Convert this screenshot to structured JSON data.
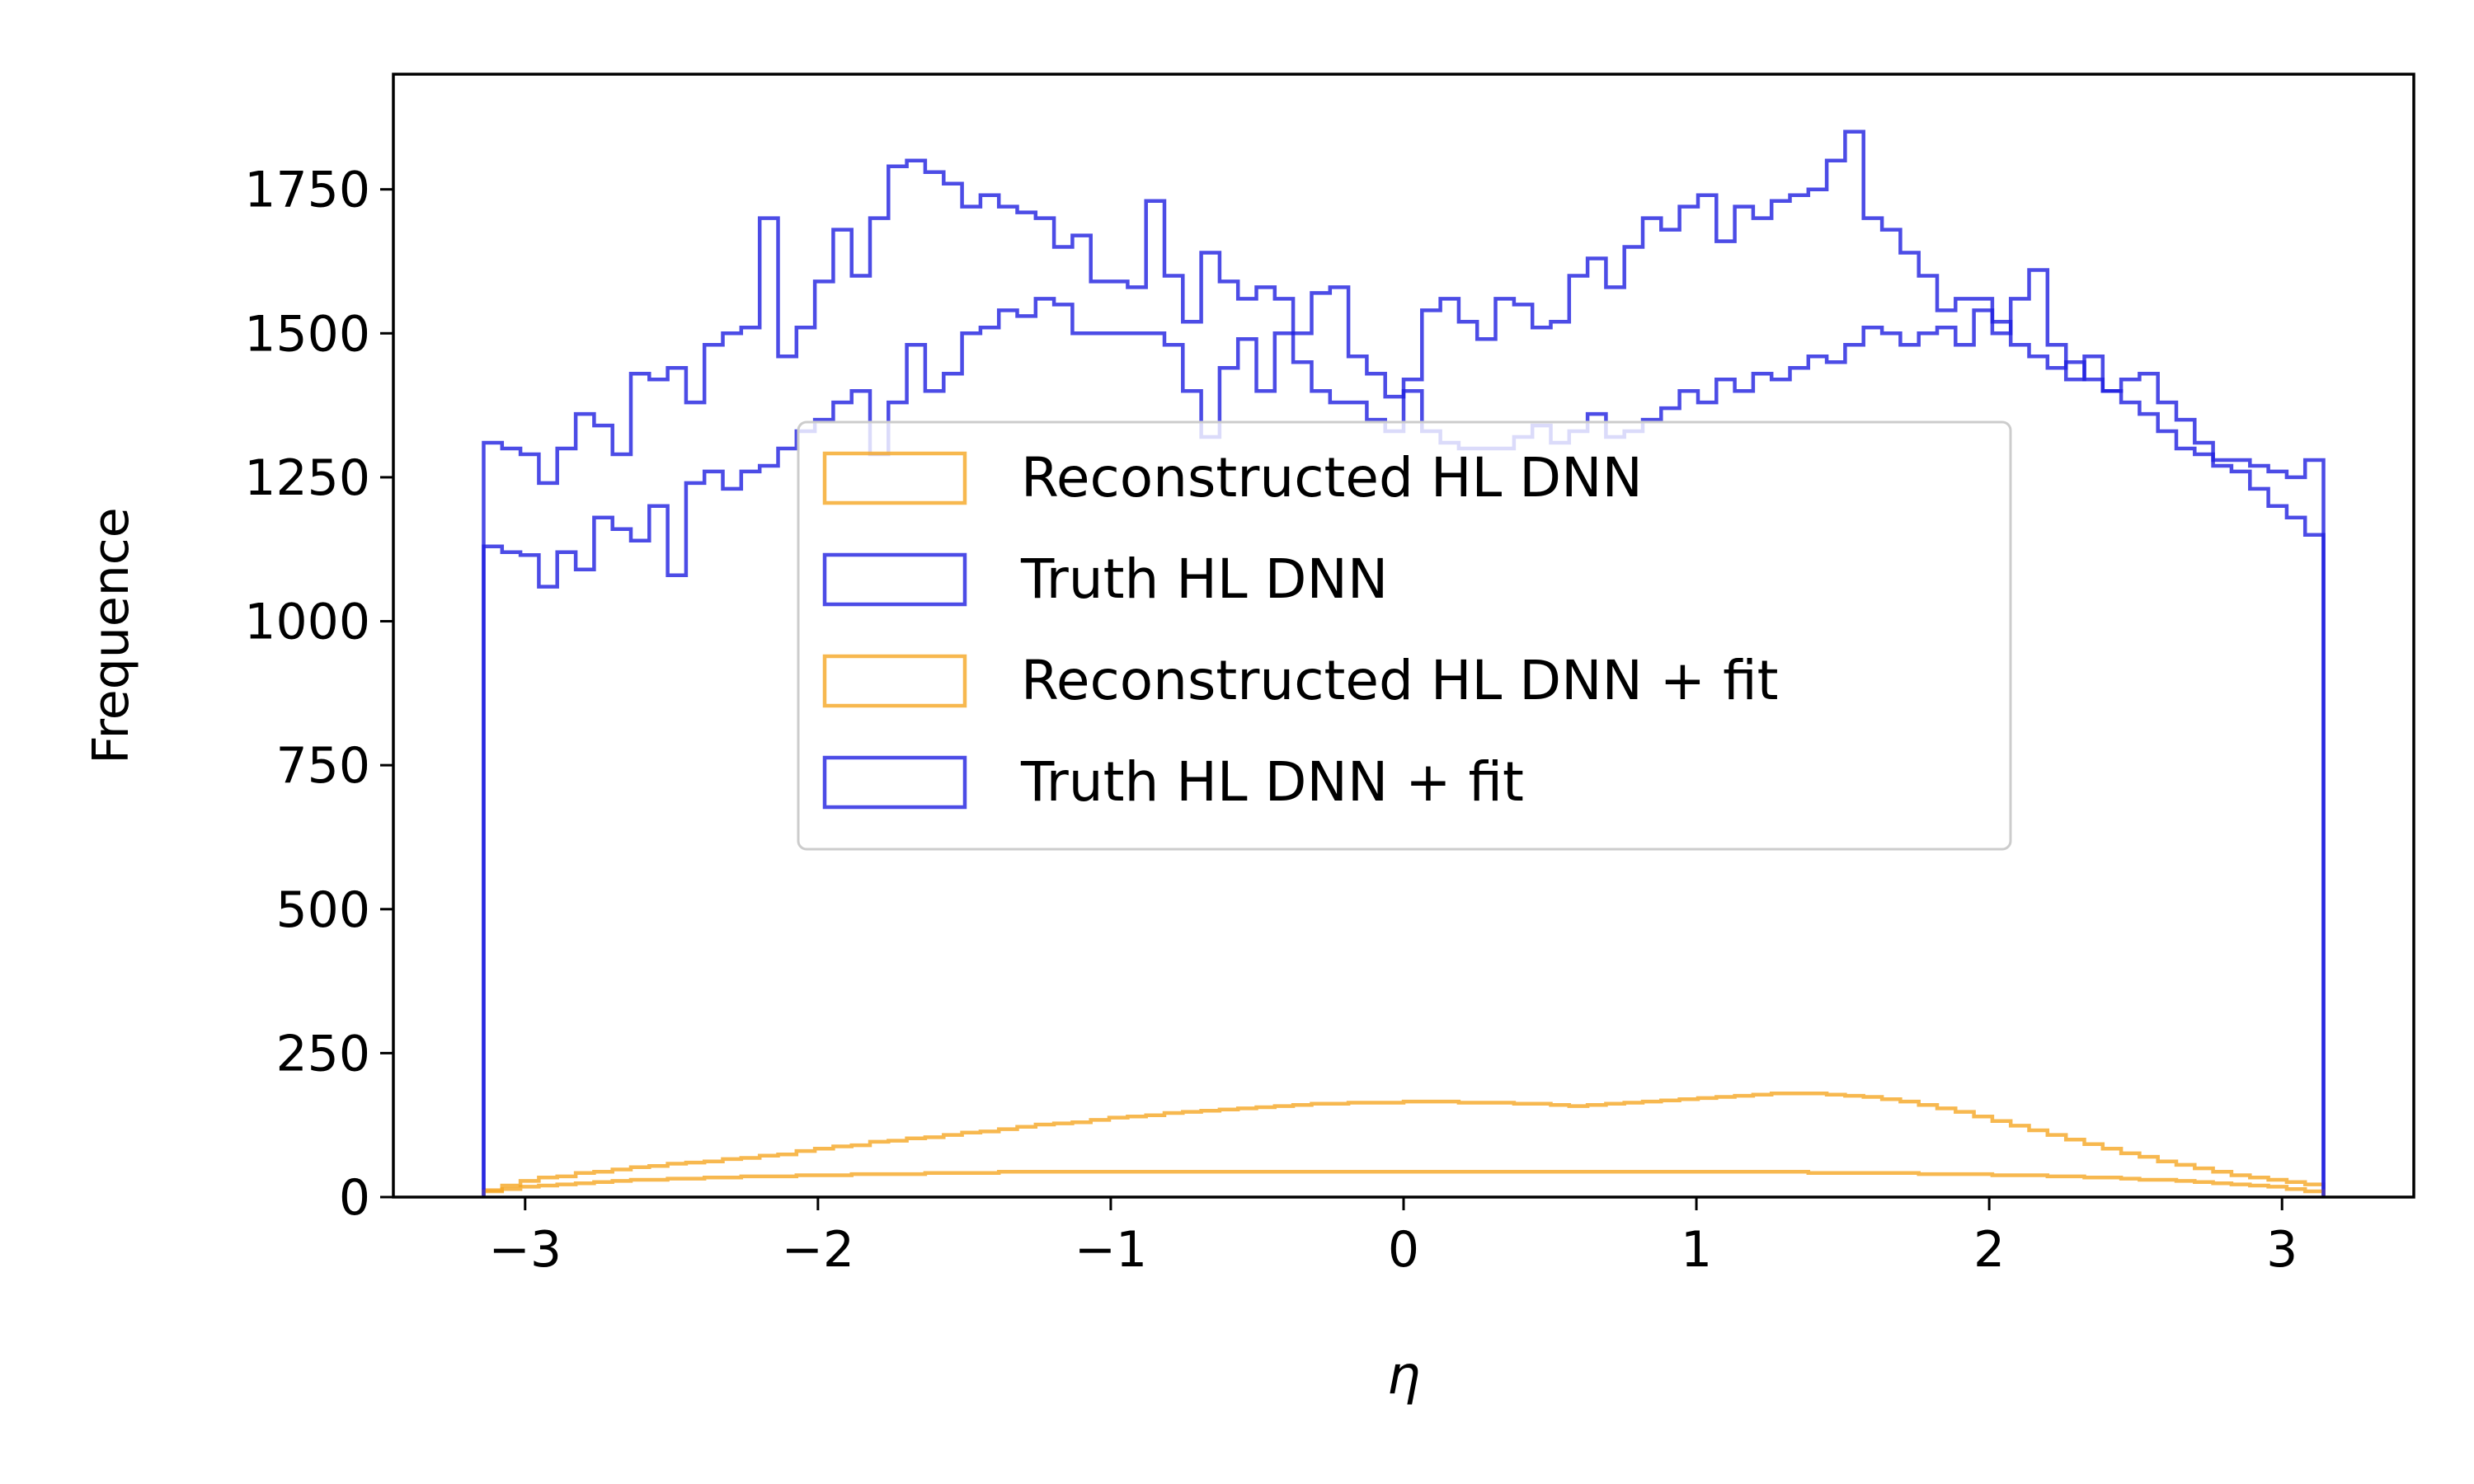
{
  "chart_data": {
    "type": "histogram-step",
    "xlabel": "η",
    "ylabel": "Frequence",
    "xlim": [
      -3.45,
      3.45
    ],
    "ylim": [
      0,
      1950
    ],
    "xticks": [
      {
        "value": -3,
        "label": "−3"
      },
      {
        "value": -2,
        "label": "−2"
      },
      {
        "value": -1,
        "label": "−1"
      },
      {
        "value": 0,
        "label": "0"
      },
      {
        "value": 1,
        "label": "1"
      },
      {
        "value": 2,
        "label": "2"
      },
      {
        "value": 3,
        "label": "3"
      }
    ],
    "yticks": [
      {
        "value": 0,
        "label": "0"
      },
      {
        "value": 250,
        "label": "250"
      },
      {
        "value": 500,
        "label": "500"
      },
      {
        "value": 750,
        "label": "750"
      },
      {
        "value": 1000,
        "label": "1000"
      },
      {
        "value": 1250,
        "label": "1250"
      },
      {
        "value": 1500,
        "label": "1500"
      },
      {
        "value": 1750,
        "label": "1750"
      }
    ],
    "bin_range": [
      -3.14159,
      3.14159
    ],
    "n_bins": 100,
    "series": [
      {
        "name": "Reconstructed HL DNN",
        "color": "#f5a623",
        "values": [
          12,
          20,
          28,
          34,
          36,
          42,
          44,
          48,
          52,
          54,
          58,
          60,
          62,
          66,
          68,
          72,
          74,
          80,
          84,
          88,
          90,
          96,
          98,
          102,
          104,
          108,
          112,
          114,
          118,
          122,
          126,
          128,
          130,
          134,
          138,
          140,
          142,
          146,
          148,
          150,
          152,
          154,
          156,
          158,
          160,
          162,
          162,
          164,
          164,
          164,
          166,
          166,
          166,
          164,
          164,
          164,
          162,
          162,
          160,
          158,
          160,
          162,
          164,
          166,
          168,
          170,
          172,
          174,
          176,
          178,
          180,
          180,
          180,
          178,
          176,
          174,
          170,
          166,
          160,
          154,
          148,
          140,
          132,
          124,
          116,
          108,
          100,
          92,
          84,
          76,
          70,
          62,
          56,
          50,
          44,
          38,
          34,
          30,
          26,
          22
        ]
      },
      {
        "name": "Truth HL DNN",
        "color": "#1f1fe0",
        "values": [
          1130,
          1120,
          1115,
          1060,
          1120,
          1090,
          1180,
          1160,
          1140,
          1200,
          1080,
          1240,
          1260,
          1230,
          1260,
          1270,
          1300,
          1330,
          1350,
          1380,
          1400,
          1290,
          1380,
          1480,
          1400,
          1430,
          1500,
          1510,
          1540,
          1530,
          1560,
          1550,
          1500,
          1500,
          1500,
          1500,
          1500,
          1480,
          1400,
          1320,
          1440,
          1490,
          1400,
          1500,
          1450,
          1400,
          1380,
          1380,
          1350,
          1330,
          1400,
          1330,
          1310,
          1300,
          1300,
          1300,
          1320,
          1340,
          1310,
          1330,
          1360,
          1320,
          1330,
          1350,
          1370,
          1400,
          1380,
          1420,
          1400,
          1430,
          1420,
          1440,
          1460,
          1450,
          1480,
          1510,
          1500,
          1480,
          1500,
          1510,
          1480,
          1540,
          1500,
          1560,
          1610,
          1480,
          1420,
          1460,
          1400,
          1420,
          1430,
          1380,
          1350,
          1310,
          1270,
          1260,
          1230,
          1200,
          1180,
          1150
        ]
      },
      {
        "name": "Reconstructed HL DNN + fit",
        "color": "#f5a623",
        "values": [
          10,
          14,
          18,
          20,
          22,
          24,
          26,
          28,
          30,
          30,
          32,
          32,
          34,
          34,
          36,
          36,
          36,
          38,
          38,
          38,
          40,
          40,
          40,
          40,
          42,
          42,
          42,
          42,
          44,
          44,
          44,
          44,
          44,
          44,
          44,
          44,
          44,
          44,
          44,
          44,
          44,
          44,
          44,
          44,
          44,
          44,
          44,
          44,
          44,
          44,
          44,
          44,
          44,
          44,
          44,
          44,
          44,
          44,
          44,
          44,
          44,
          44,
          44,
          44,
          44,
          44,
          44,
          44,
          44,
          44,
          44,
          44,
          42,
          42,
          42,
          42,
          42,
          42,
          40,
          40,
          40,
          40,
          38,
          38,
          38,
          36,
          36,
          34,
          34,
          32,
          30,
          30,
          28,
          26,
          24,
          22,
          20,
          18,
          14,
          10
        ]
      },
      {
        "name": "Truth HL DNN + fit",
        "color": "#1f1fe0",
        "values": [
          1310,
          1300,
          1290,
          1240,
          1300,
          1360,
          1340,
          1290,
          1430,
          1420,
          1440,
          1380,
          1480,
          1500,
          1510,
          1700,
          1460,
          1510,
          1590,
          1680,
          1600,
          1700,
          1790,
          1800,
          1780,
          1760,
          1720,
          1740,
          1720,
          1710,
          1700,
          1650,
          1670,
          1590,
          1590,
          1580,
          1730,
          1600,
          1520,
          1640,
          1590,
          1560,
          1580,
          1560,
          1500,
          1570,
          1580,
          1460,
          1430,
          1390,
          1420,
          1540,
          1560,
          1520,
          1490,
          1560,
          1550,
          1510,
          1520,
          1600,
          1630,
          1580,
          1650,
          1700,
          1680,
          1720,
          1740,
          1660,
          1720,
          1700,
          1730,
          1740,
          1750,
          1800,
          1850,
          1700,
          1680,
          1640,
          1600,
          1540,
          1560,
          1560,
          1520,
          1480,
          1460,
          1440,
          1450,
          1420,
          1400,
          1380,
          1360,
          1330,
          1300,
          1290,
          1280,
          1280,
          1270,
          1260,
          1250,
          1280
        ]
      }
    ],
    "legend": {
      "placement": "center",
      "entries": [
        "Reconstructed HL DNN",
        "Truth HL DNN",
        "Reconstructed HL DNN + fit",
        "Truth HL DNN + fit"
      ]
    },
    "grid": false
  }
}
